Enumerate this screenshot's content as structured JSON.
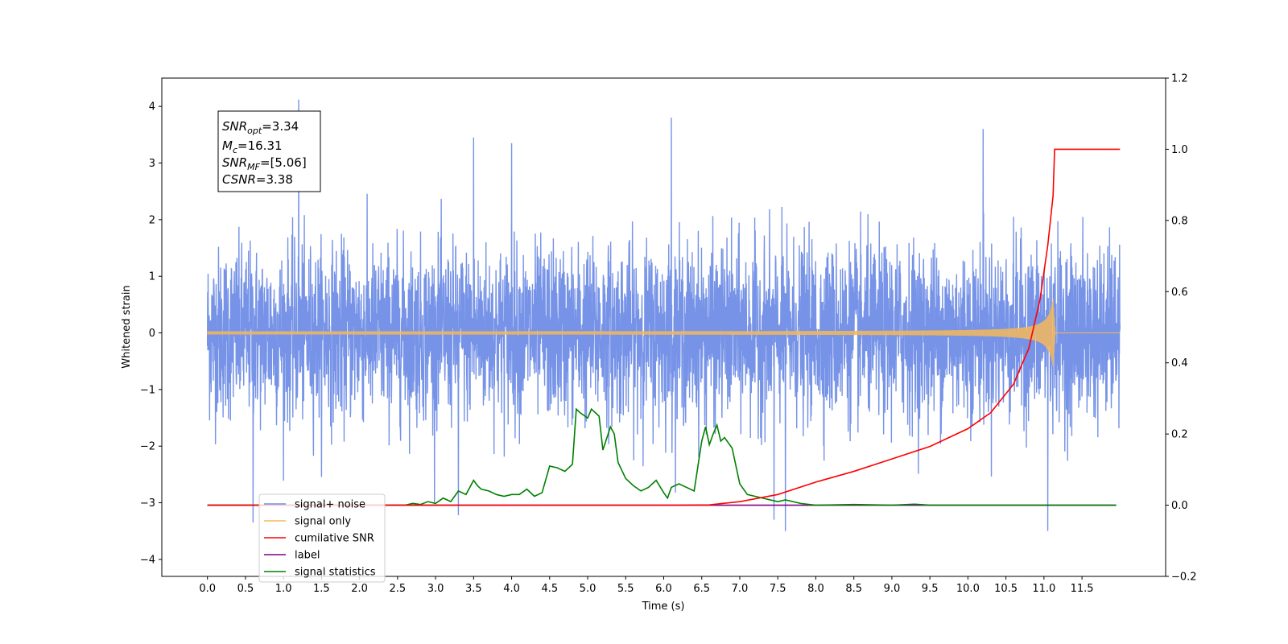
{
  "chart_data": {
    "type": "line",
    "xlabel": "Time (s)",
    "ylabel": "Whitened strain",
    "xlim": [
      -0.6,
      12.6
    ],
    "ylim": [
      -4.3,
      4.5
    ],
    "ylim_right": [
      -0.2,
      1.2
    ],
    "x_ticks": [
      "0.0",
      "0.5",
      "1.0",
      "1.5",
      "2.0",
      "2.5",
      "3.0",
      "3.5",
      "4.0",
      "4.5",
      "5.0",
      "5.5",
      "6.0",
      "6.5",
      "7.0",
      "7.5",
      "8.0",
      "8.5",
      "9.0",
      "9.5",
      "10.0",
      "10.5",
      "11.0",
      "11.5"
    ],
    "y_ticks": [
      "−4",
      "−3",
      "−2",
      "−1",
      "0",
      "1",
      "2",
      "3",
      "4"
    ],
    "y_ticks_right": [
      "−0.2",
      "0.0",
      "0.2",
      "0.4",
      "0.6",
      "0.8",
      "1.0",
      "1.2"
    ],
    "grid": false,
    "legend_position": "lower-left",
    "annotation": {
      "lines": [
        {
          "main": "SNR",
          "sub": "opt",
          "rest": "=3.34"
        },
        {
          "main": "M",
          "sub": "c",
          "rest": "=16.31"
        },
        {
          "main": "SNR",
          "sub": "MF",
          "rest": "=[5.06]"
        },
        {
          "main": "CSNR",
          "sub": "",
          "rest": "=3.38"
        }
      ]
    },
    "series": [
      {
        "name": "signal+ noise",
        "color": "#6f8de6",
        "axis": "left",
        "t_start": 0.0,
        "t_end": 12.0,
        "noise_sigma": 0.75,
        "spikes": [
          [
            0.6,
            -3.35
          ],
          [
            1.2,
            4.12
          ],
          [
            3.3,
            -3.22
          ],
          [
            3.5,
            3.45
          ],
          [
            4.0,
            3.35
          ],
          [
            6.1,
            3.8
          ],
          [
            7.6,
            -3.5
          ],
          [
            10.2,
            3.6
          ],
          [
            11.05,
            -3.5
          ],
          [
            7.45,
            -3.3
          ]
        ]
      },
      {
        "name": "signal only",
        "color": "#f5b75a",
        "axis": "left",
        "merger_time": 11.12,
        "peak_amplitude": 0.6
      },
      {
        "name": "cumilative SNR",
        "color": "#ff0000",
        "axis": "right",
        "points": [
          [
            0.0,
            0.0
          ],
          [
            6.2,
            0.0
          ],
          [
            6.6,
            0.001
          ],
          [
            7.0,
            0.01
          ],
          [
            7.5,
            0.03
          ],
          [
            8.0,
            0.065
          ],
          [
            8.5,
            0.095
          ],
          [
            9.0,
            0.13
          ],
          [
            9.5,
            0.165
          ],
          [
            10.0,
            0.215
          ],
          [
            10.3,
            0.26
          ],
          [
            10.6,
            0.34
          ],
          [
            10.8,
            0.44
          ],
          [
            10.95,
            0.58
          ],
          [
            11.05,
            0.73
          ],
          [
            11.12,
            0.87
          ],
          [
            11.14,
            1.0
          ],
          [
            12.0,
            1.0
          ]
        ]
      },
      {
        "name": "label",
        "color": "#800080",
        "axis": "right",
        "points": [
          [
            0.0,
            0.0
          ],
          [
            11.95,
            0.0
          ]
        ]
      },
      {
        "name": "signal statistics",
        "color": "#008000",
        "axis": "right",
        "points": [
          [
            0.0,
            0.0
          ],
          [
            2.6,
            0.0
          ],
          [
            2.7,
            0.005
          ],
          [
            2.8,
            0.002
          ],
          [
            2.9,
            0.01
          ],
          [
            3.0,
            0.005
          ],
          [
            3.1,
            0.02
          ],
          [
            3.2,
            0.01
          ],
          [
            3.3,
            0.04
          ],
          [
            3.4,
            0.03
          ],
          [
            3.5,
            0.07
          ],
          [
            3.55,
            0.055
          ],
          [
            3.6,
            0.045
          ],
          [
            3.7,
            0.04
          ],
          [
            3.8,
            0.03
          ],
          [
            3.9,
            0.025
          ],
          [
            4.0,
            0.03
          ],
          [
            4.1,
            0.03
          ],
          [
            4.2,
            0.045
          ],
          [
            4.3,
            0.025
          ],
          [
            4.4,
            0.035
          ],
          [
            4.5,
            0.11
          ],
          [
            4.6,
            0.105
          ],
          [
            4.7,
            0.095
          ],
          [
            4.8,
            0.115
          ],
          [
            4.85,
            0.27
          ],
          [
            4.9,
            0.26
          ],
          [
            5.0,
            0.245
          ],
          [
            5.05,
            0.27
          ],
          [
            5.15,
            0.25
          ],
          [
            5.2,
            0.155
          ],
          [
            5.3,
            0.22
          ],
          [
            5.35,
            0.2
          ],
          [
            5.4,
            0.12
          ],
          [
            5.5,
            0.075
          ],
          [
            5.6,
            0.055
          ],
          [
            5.7,
            0.04
          ],
          [
            5.8,
            0.05
          ],
          [
            5.9,
            0.07
          ],
          [
            6.0,
            0.035
          ],
          [
            6.05,
            0.02
          ],
          [
            6.1,
            0.05
          ],
          [
            6.2,
            0.06
          ],
          [
            6.3,
            0.05
          ],
          [
            6.4,
            0.04
          ],
          [
            6.5,
            0.18
          ],
          [
            6.55,
            0.22
          ],
          [
            6.6,
            0.17
          ],
          [
            6.65,
            0.2
          ],
          [
            6.7,
            0.225
          ],
          [
            6.75,
            0.18
          ],
          [
            6.8,
            0.19
          ],
          [
            6.9,
            0.16
          ],
          [
            7.0,
            0.06
          ],
          [
            7.1,
            0.03
          ],
          [
            7.3,
            0.02
          ],
          [
            7.5,
            0.01
          ],
          [
            7.6,
            0.015
          ],
          [
            7.8,
            0.005
          ],
          [
            8.0,
            0.0
          ],
          [
            8.5,
            0.002
          ],
          [
            9.0,
            0.0
          ],
          [
            9.3,
            0.003
          ],
          [
            9.5,
            0.0
          ],
          [
            11.95,
            0.0
          ]
        ]
      }
    ]
  }
}
